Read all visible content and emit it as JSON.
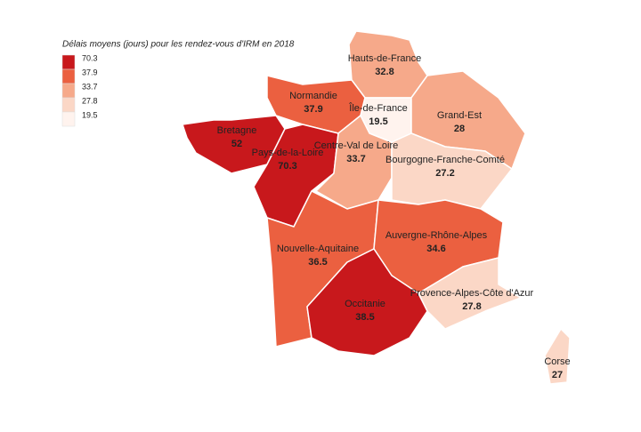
{
  "chart_data": {
    "type": "map",
    "title": "Délais moyens (jours) pour les rendez-vous d'IRM en 2018",
    "legend": [
      {
        "value": 70.3,
        "color": "#c8181c"
      },
      {
        "value": 37.9,
        "color": "#eb6040"
      },
      {
        "value": 33.7,
        "color": "#f6a98a"
      },
      {
        "value": 27.8,
        "color": "#fbd7c6"
      },
      {
        "value": 19.5,
        "color": "#fff3ee"
      }
    ],
    "regions": [
      {
        "name": "Hauts-de-France",
        "value": 32.8
      },
      {
        "name": "Normandie",
        "value": 37.9
      },
      {
        "name": "Île-de-France",
        "value": 19.5
      },
      {
        "name": "Grand-Est",
        "value": 28
      },
      {
        "name": "Bretagne",
        "value": 52
      },
      {
        "name": "Pays-de-la-Loire",
        "value": 70.3
      },
      {
        "name": "Centre-Val de Loire",
        "value": 33.7
      },
      {
        "name": "Bourgogne-Franche-Comté",
        "value": 27.2
      },
      {
        "name": "Nouvelle-Aquitaine",
        "value": 36.5
      },
      {
        "name": "Auvergne-Rhône-Alpes",
        "value": 34.6
      },
      {
        "name": "Occitanie",
        "value": 38.5
      },
      {
        "name": "Provence-Alpes-Côte d'Azur",
        "value": 27.8
      },
      {
        "name": "Corse",
        "value": 27
      }
    ]
  }
}
